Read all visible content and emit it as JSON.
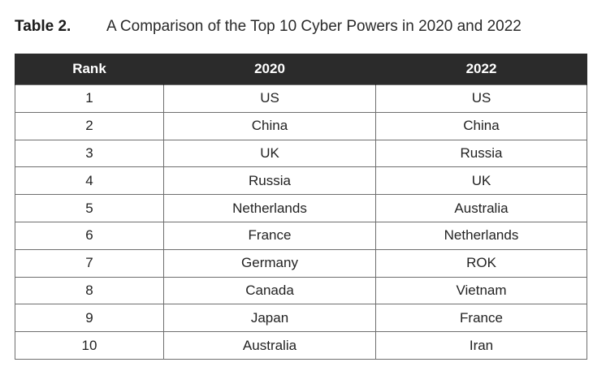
{
  "caption": {
    "label": "Table 2.",
    "title": "A Comparison of the Top 10 Cyber Powers in 2020 and 2022"
  },
  "table": {
    "headers": [
      "Rank",
      "2020",
      "2022"
    ],
    "rows": [
      [
        "1",
        "US",
        "US"
      ],
      [
        "2",
        "China",
        "China"
      ],
      [
        "3",
        "UK",
        "Russia"
      ],
      [
        "4",
        "Russia",
        "UK"
      ],
      [
        "5",
        "Netherlands",
        "Australia"
      ],
      [
        "6",
        "France",
        "Netherlands"
      ],
      [
        "7",
        "Germany",
        "ROK"
      ],
      [
        "8",
        "Canada",
        "Vietnam"
      ],
      [
        "9",
        "Japan",
        "France"
      ],
      [
        "10",
        "Australia",
        "Iran"
      ]
    ]
  },
  "colors": {
    "header_background": "#2b2b2b",
    "header_text": "#ffffff",
    "grid_line": "#6e6e6e"
  }
}
